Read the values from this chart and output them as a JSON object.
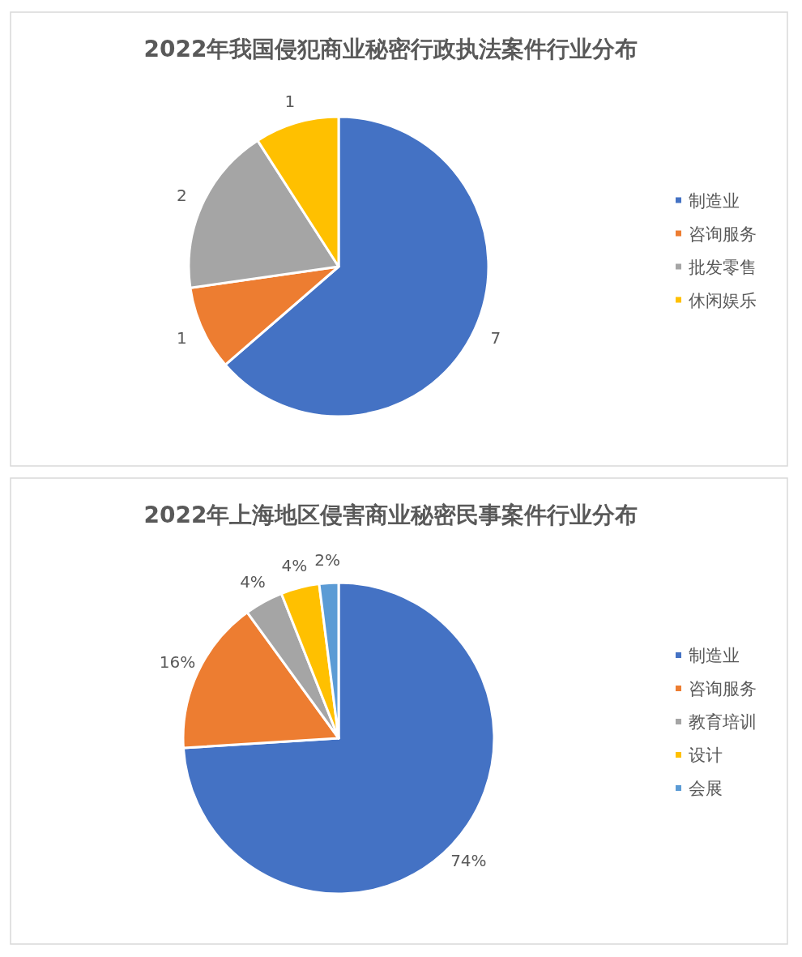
{
  "chart_data": [
    {
      "type": "pie",
      "title": "2022年我国侵犯商业秘密行政执法案件行业分布",
      "categories": [
        "制造业",
        "咨询服务",
        "批发零售",
        "休闲娱乐"
      ],
      "values": [
        7,
        1,
        2,
        1
      ],
      "colors": [
        "#4472c4",
        "#ed7d31",
        "#a5a5a5",
        "#ffc000"
      ],
      "data_labels": true,
      "legend": "right"
    },
    {
      "type": "pie",
      "title": "2022年上海地区侵害商业秘密民事案件行业分布",
      "categories": [
        "制造业",
        "咨询服务",
        "教育培训",
        "设计",
        "会展"
      ],
      "values": [
        74,
        16,
        4,
        4,
        2
      ],
      "colors": [
        "#4472c4",
        "#ed7d31",
        "#a5a5a5",
        "#ffc000",
        "#5b9bd5"
      ],
      "value_labels": [
        "74%",
        "16%",
        "4%",
        "4%",
        "2%"
      ],
      "legend": "right"
    }
  ]
}
